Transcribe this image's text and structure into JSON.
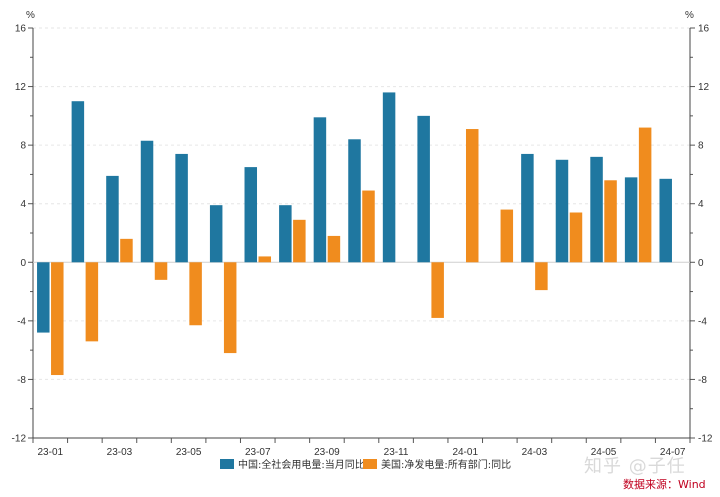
{
  "chart_data": {
    "type": "bar",
    "y_unit_left": "%",
    "y_unit_right": "%",
    "ylim": [
      -12,
      16
    ],
    "yticks": [
      -12,
      -8,
      -4,
      0,
      4,
      8,
      12,
      16
    ],
    "categories": [
      "23-01",
      "23-02",
      "23-03",
      "23-04",
      "23-05",
      "23-06",
      "23-07",
      "23-08",
      "23-09",
      "23-10",
      "23-11",
      "23-12",
      "24-01",
      "24-02",
      "24-03",
      "24-04",
      "24-05",
      "24-06",
      "24-07"
    ],
    "xtick_labels": [
      "23-01",
      "23-03",
      "23-05",
      "23-07",
      "23-09",
      "23-11",
      "24-01",
      "24-03",
      "24-05",
      "24-07"
    ],
    "series": [
      {
        "name": "中国:全社会用电量:当月同比",
        "color": "#1f77a0",
        "values": [
          -4.8,
          11.0,
          5.9,
          8.3,
          7.4,
          3.9,
          6.5,
          3.9,
          9.9,
          8.4,
          11.6,
          10.0,
          null,
          null,
          7.4,
          7.0,
          7.2,
          5.8,
          5.7
        ]
      },
      {
        "name": "美国:净发电量:所有部门:同比",
        "color": "#f08c1e",
        "values": [
          -7.7,
          -5.4,
          1.6,
          -1.2,
          -4.3,
          -6.2,
          0.4,
          2.9,
          1.8,
          4.9,
          null,
          -3.8,
          9.1,
          3.6,
          -1.9,
          3.4,
          5.6,
          9.2,
          null
        ]
      }
    ]
  },
  "watermark": "知乎 @子任",
  "source": "数据来源：Wind"
}
